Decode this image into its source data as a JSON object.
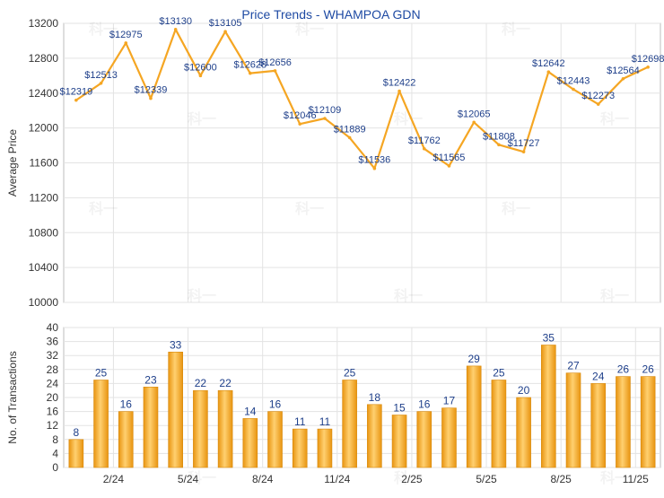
{
  "chart_data": [
    {
      "type": "line",
      "title": "Price Trends - WHAMPOA GDN",
      "xlabel": "",
      "ylabel": "Average Price",
      "ylim": [
        10000,
        13200
      ],
      "yticks": [
        10000,
        10400,
        10800,
        11200,
        11600,
        12000,
        12400,
        12800,
        13200
      ],
      "grid": true,
      "watermark": "科一",
      "color": "#f5a623",
      "label_prefix": "$",
      "series": [
        {
          "name": "Average Price",
          "values": [
            12319,
            12513,
            12975,
            12339,
            13130,
            12600,
            13105,
            12628,
            12656,
            12046,
            12109,
            11889,
            11536,
            12422,
            11762,
            11565,
            12065,
            11808,
            11727,
            12642,
            12443,
            12273,
            12564,
            12698
          ]
        }
      ]
    },
    {
      "type": "bar",
      "title": "",
      "xlabel": "",
      "ylabel": "No. of Transactions",
      "ylim": [
        0,
        40
      ],
      "yticks": [
        0,
        4,
        8,
        12,
        16,
        20,
        24,
        28,
        32,
        36,
        40
      ],
      "grid": true,
      "color": "#f5a623",
      "x_tick_labels": [
        {
          "index": 1.5,
          "label": "2/24"
        },
        {
          "index": 4.5,
          "label": "5/24"
        },
        {
          "index": 7.5,
          "label": "8/24"
        },
        {
          "index": 10.5,
          "label": "11/24"
        },
        {
          "index": 13.5,
          "label": "2/25"
        },
        {
          "index": 16.5,
          "label": "5/25"
        },
        {
          "index": 19.5,
          "label": "8/25"
        },
        {
          "index": 22.5,
          "label": "11/25"
        }
      ],
      "series": [
        {
          "name": "No. of Transactions",
          "values": [
            8,
            25,
            16,
            23,
            33,
            22,
            22,
            14,
            16,
            11,
            11,
            25,
            18,
            15,
            16,
            17,
            29,
            25,
            20,
            35,
            27,
            24,
            26,
            26
          ]
        }
      ]
    }
  ]
}
